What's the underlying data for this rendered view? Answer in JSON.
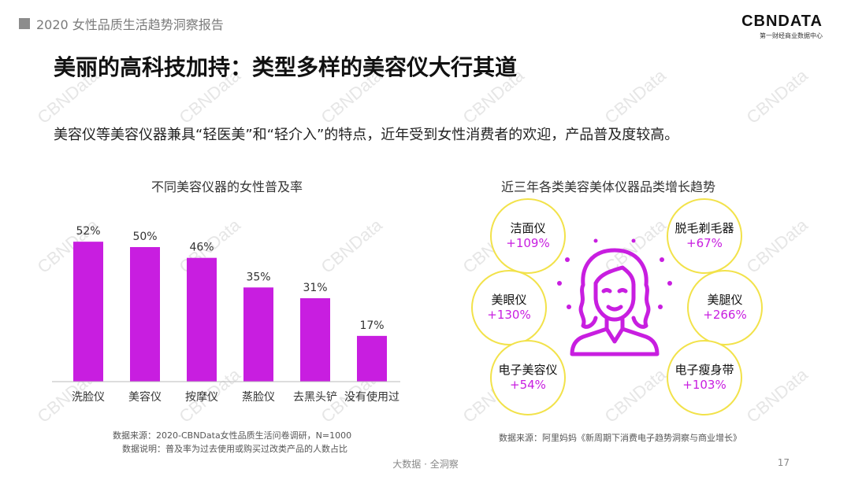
{
  "header": {
    "label": "2020 女性品质生活趋势洞察报告"
  },
  "logo": {
    "main": "CBNDATA",
    "sub": "第一财经商业数据中心"
  },
  "watermark_text": "CBNData",
  "page": {
    "title": "美丽的高科技加持：类型多样的美容仪大行其道",
    "subtitle": "美容仪等美容仪器兼具“轻医美”和“轻介入”的特点，近年受到女性消费者的欢迎，产品普及度较高。"
  },
  "chart_data": [
    {
      "type": "bar",
      "title": "不同美容仪器的女性普及率",
      "categories": [
        "洗脸仪",
        "美容仪",
        "按摩仪",
        "蒸脸仪",
        "去黑头铲",
        "没有使用过"
      ],
      "values": [
        52,
        50,
        46,
        35,
        31,
        17
      ],
      "value_labels": [
        "52%",
        "50%",
        "46%",
        "35%",
        "31%",
        "17%"
      ],
      "unit": "%",
      "ylim": [
        0,
        60
      ],
      "color": "#c81ee0",
      "grid": false
    }
  ],
  "left_notes": {
    "source": "数据来源：2020-CBNData女性品质生活问卷调研，N=1000",
    "note": "数据说明：普及率为过去使用或购买过改类产品的人数占比"
  },
  "right_panel": {
    "title": "近三年各类美容美体仪器品类增长趋势",
    "accent_color": "#c81ee0",
    "circle_color": "#f2e24a",
    "icon": "woman-face-icon",
    "items": [
      {
        "name": "洁面仪",
        "growth": "+109%"
      },
      {
        "name": "脱毛剃毛器",
        "growth": "+67%"
      },
      {
        "name": "美眼仪",
        "growth": "+130%"
      },
      {
        "name": "美腿仪",
        "growth": "+266%"
      },
      {
        "name": "电子美容仪",
        "growth": "+54%"
      },
      {
        "name": "电子瘦身带",
        "growth": "+103%"
      }
    ],
    "source": "数据来源：阿里妈妈《新周期下消费电子趋势洞察与商业增长》"
  },
  "footer": {
    "text": "大数据 · 全洞察",
    "page_number": "17"
  }
}
